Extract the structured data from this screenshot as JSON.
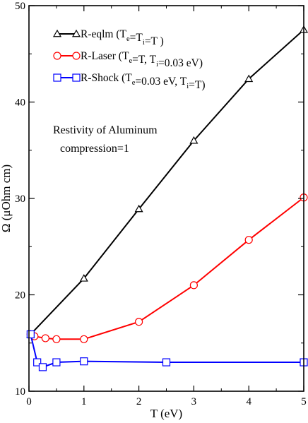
{
  "chart_data": {
    "type": "line",
    "title": "",
    "xlabel": "T (eV)",
    "ylabel": "Ω (μOhm cm)",
    "xlim": [
      0,
      5
    ],
    "ylim": [
      10,
      50
    ],
    "xticks": [
      0,
      1,
      2,
      3,
      4,
      5
    ],
    "yticks": [
      10,
      20,
      30,
      40,
      50
    ],
    "grid": false,
    "legend_position": "top-left",
    "annotation": [
      "Restivity of Aluminum",
      "compression=1"
    ],
    "series": [
      {
        "name": "R-eqlm",
        "legend_parts": [
          {
            "t": "R-eqlm  (T"
          },
          {
            "t": "e",
            "sub": true
          },
          {
            "t": "=T"
          },
          {
            "t": "i",
            "sub": true
          },
          {
            "t": "=T )"
          }
        ],
        "color": "#000000",
        "marker": "triangle",
        "x": [
          0.03,
          1,
          2,
          3,
          4,
          5
        ],
        "y": [
          15.9,
          21.7,
          28.9,
          36.0,
          42.4,
          47.5
        ]
      },
      {
        "name": "R-Laser",
        "legend_parts": [
          {
            "t": "R-Laser  (T"
          },
          {
            "t": "e",
            "sub": true
          },
          {
            "t": "=T, T"
          },
          {
            "t": "i",
            "sub": true
          },
          {
            "t": "=0.03 eV)"
          }
        ],
        "color": "#ff0000",
        "marker": "circle",
        "x": [
          0.03,
          0.1,
          0.3,
          0.5,
          1,
          2,
          3,
          4,
          5
        ],
        "y": [
          15.9,
          15.7,
          15.5,
          15.4,
          15.4,
          17.2,
          21.0,
          25.7,
          30.1
        ]
      },
      {
        "name": "R-Shock",
        "legend_parts": [
          {
            "t": "R-Shock (T"
          },
          {
            "t": "e",
            "sub": true
          },
          {
            "t": "=0.03 eV, T"
          },
          {
            "t": "i",
            "sub": true
          },
          {
            "t": "=T)"
          }
        ],
        "color": "#0000ff",
        "marker": "square",
        "x": [
          0.03,
          0.15,
          0.25,
          0.5,
          1,
          2.5,
          5
        ],
        "y": [
          15.9,
          13.0,
          12.5,
          13.0,
          13.1,
          13.0,
          13.0
        ]
      }
    ]
  }
}
